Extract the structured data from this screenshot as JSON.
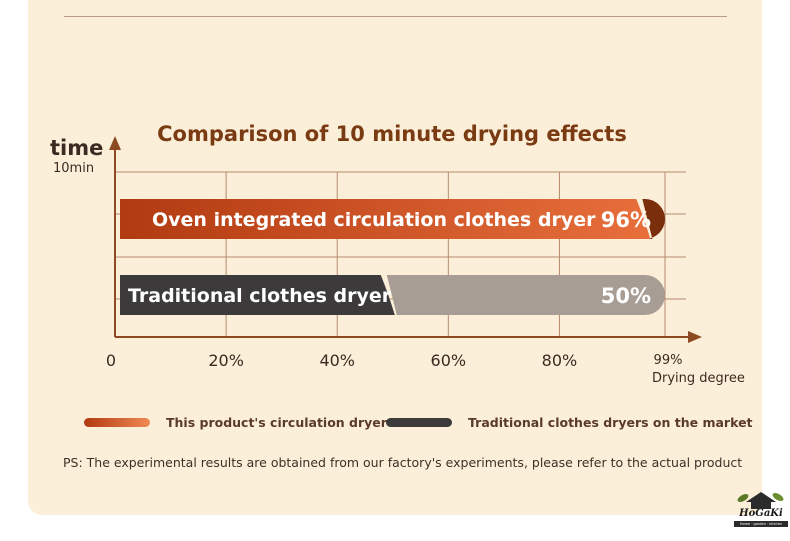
{
  "chart_data": {
    "type": "bar",
    "orientation": "horizontal",
    "title": "Comparison of 10 minute drying effects",
    "ylabel": "time",
    "ylabel_sub": "10min",
    "xlabel": "Drying degree",
    "x_ticks": [
      "0",
      "20%",
      "40%",
      "60%",
      "80%",
      "99%"
    ],
    "x_tick_values": [
      0,
      20,
      40,
      60,
      80,
      99
    ],
    "xlim": [
      0,
      99
    ],
    "grid": true,
    "series": [
      {
        "category": "Oven integrated circulation clothes dryer",
        "value": 96,
        "value_label": "96%",
        "fill_color": "#e86f3c",
        "fill_color_start": "#b23a11",
        "tag_color": "#7a2e0c"
      },
      {
        "category": "Traditional clothes dryer",
        "value": 50,
        "value_label": "50%",
        "fill_color": "#3c3a3b",
        "tag_color": "#a79d95"
      }
    ],
    "legend": {
      "placement": "bottom",
      "items": [
        {
          "label": "This product's circulation dryer",
          "color": "#e07040"
        },
        {
          "label": "Traditional clothes dryers on the market",
          "color": "#3c3a3b"
        }
      ]
    },
    "colors": {
      "axis": "#8c4a22",
      "grid": "#b58a70"
    }
  },
  "note": "PS: The experimental results are obtained from our factory's experiments, please refer to the actual product",
  "logo": {
    "word": "HoGaKi",
    "tagline": "Home · garden · kitchen"
  }
}
